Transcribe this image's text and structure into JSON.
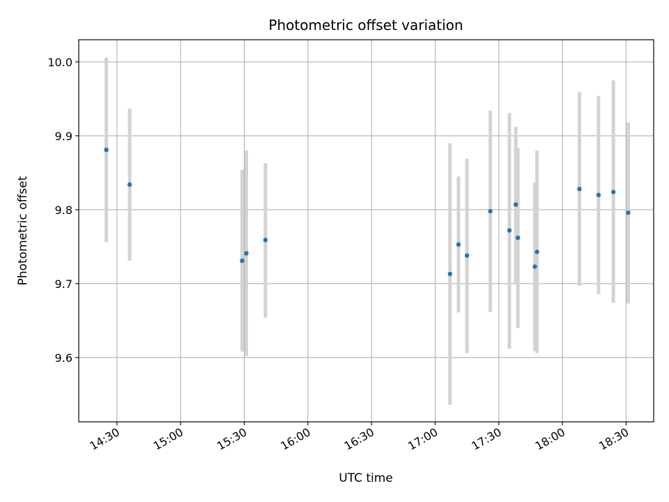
{
  "chart_data": {
    "type": "scatter",
    "title": "Photometric offset variation",
    "xlabel": "UTC time",
    "ylabel": "Photometric offset",
    "x_ticks": [
      "14:30",
      "15:00",
      "15:30",
      "16:00",
      "16:30",
      "17:00",
      "17:30",
      "18:00",
      "18:30"
    ],
    "y_ticks": [
      "9.6",
      "9.7",
      "9.8",
      "9.9",
      "10.0"
    ],
    "xlim": [
      "14:12",
      "18:43"
    ],
    "ylim": [
      9.513,
      10.03
    ],
    "grid": true,
    "colors": {
      "point": "#1f77b4",
      "errorbar": "#d3d3d3",
      "grid": "#b0b0b0",
      "axes": "#000000"
    },
    "points": [
      {
        "x": "14:25",
        "y": 9.881,
        "yerr_low": 9.756,
        "yerr_high": 10.006
      },
      {
        "x": "14:36",
        "y": 9.834,
        "yerr_low": 9.731,
        "yerr_high": 9.937
      },
      {
        "x": "15:29",
        "y": 9.731,
        "yerr_low": 9.608,
        "yerr_high": 9.854
      },
      {
        "x": "15:31",
        "y": 9.741,
        "yerr_low": 9.602,
        "yerr_high": 9.88
      },
      {
        "x": "15:40",
        "y": 9.759,
        "yerr_low": 9.654,
        "yerr_high": 9.863
      },
      {
        "x": "17:07",
        "y": 9.713,
        "yerr_low": 9.536,
        "yerr_high": 9.89
      },
      {
        "x": "17:11",
        "y": 9.753,
        "yerr_low": 9.661,
        "yerr_high": 9.845
      },
      {
        "x": "17:15",
        "y": 9.738,
        "yerr_low": 9.606,
        "yerr_high": 9.869
      },
      {
        "x": "17:26",
        "y": 9.798,
        "yerr_low": 9.662,
        "yerr_high": 9.934
      },
      {
        "x": "17:35",
        "y": 9.772,
        "yerr_low": 9.612,
        "yerr_high": 9.931
      },
      {
        "x": "17:38",
        "y": 9.807,
        "yerr_low": 9.701,
        "yerr_high": 9.912
      },
      {
        "x": "17:39",
        "y": 9.762,
        "yerr_low": 9.64,
        "yerr_high": 9.884
      },
      {
        "x": "17:47",
        "y": 9.723,
        "yerr_low": 9.609,
        "yerr_high": 9.837
      },
      {
        "x": "17:48",
        "y": 9.743,
        "yerr_low": 9.606,
        "yerr_high": 9.88
      },
      {
        "x": "18:08",
        "y": 9.828,
        "yerr_low": 9.697,
        "yerr_high": 9.959
      },
      {
        "x": "18:17",
        "y": 9.82,
        "yerr_low": 9.686,
        "yerr_high": 9.954
      },
      {
        "x": "18:24",
        "y": 9.824,
        "yerr_low": 9.674,
        "yerr_high": 9.975
      },
      {
        "x": "18:31",
        "y": 9.796,
        "yerr_low": 9.673,
        "yerr_high": 9.918
      }
    ]
  }
}
